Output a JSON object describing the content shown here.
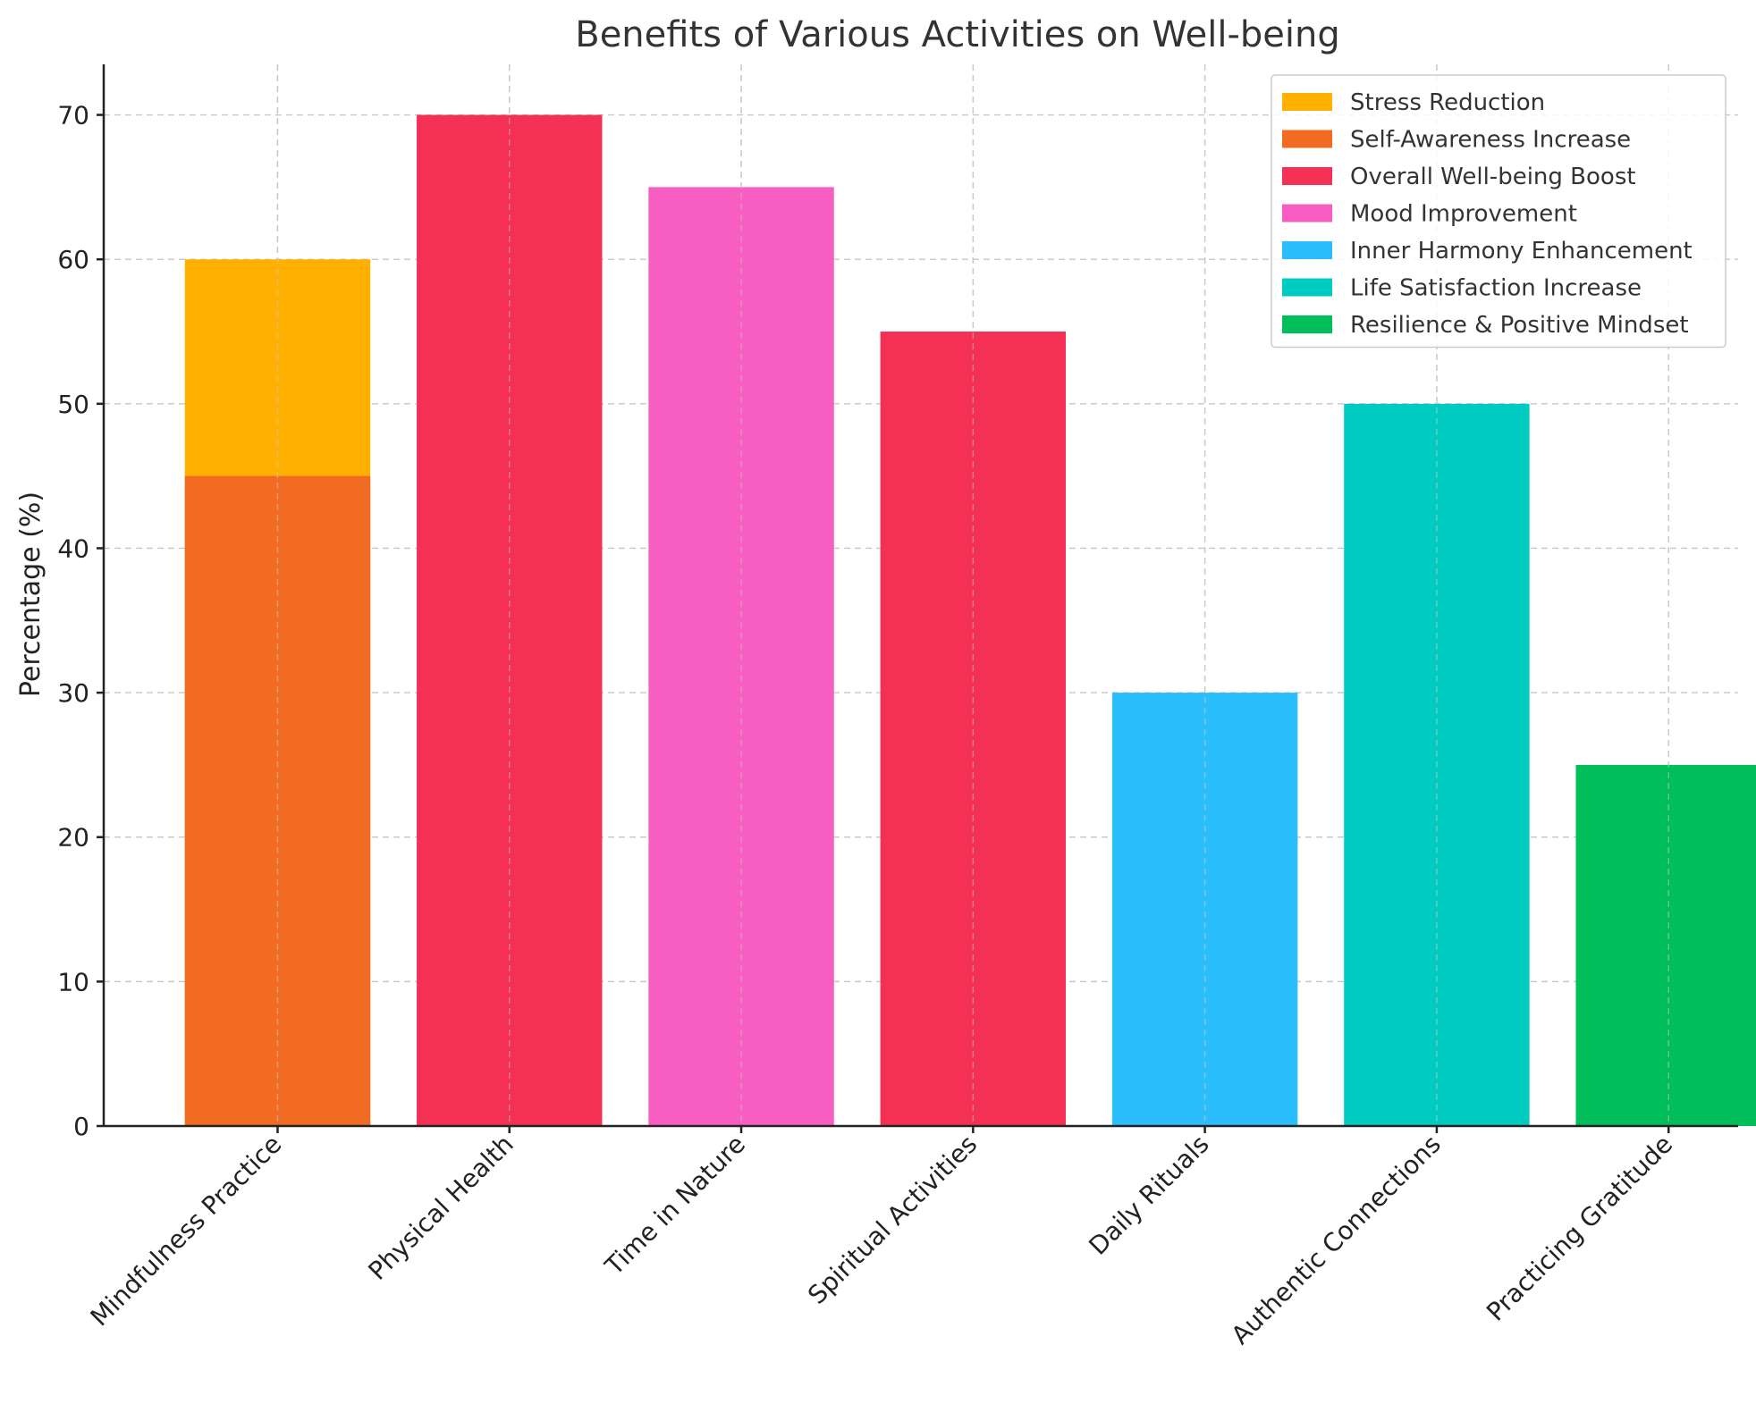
{
  "chart_data": {
    "type": "bar",
    "title": "Benefits of Various Activities on Well-being",
    "xlabel": "",
    "ylabel": "Percentage (%)",
    "ylim": [
      0,
      73.5
    ],
    "yticks": [
      0,
      10,
      20,
      30,
      40,
      50,
      60,
      70
    ],
    "grid": true,
    "legend_position": "top-right",
    "categories": [
      "Mindfulness Practice",
      "Physical Health",
      "Time in Nature",
      "Spiritual Activities",
      "Daily Rituals",
      "Authentic Connections",
      "Practicing Gratitude"
    ],
    "series": [
      {
        "name": "Stress Reduction",
        "color": "#FFB000",
        "values": [
          60,
          null,
          null,
          null,
          null,
          null,
          null
        ]
      },
      {
        "name": "Self-Awareness Increase",
        "color": "#F26B22",
        "values": [
          45,
          null,
          null,
          null,
          null,
          null,
          null
        ]
      },
      {
        "name": "Overall Well-being Boost",
        "color": "#F43155",
        "values": [
          null,
          70,
          null,
          55,
          null,
          null,
          null
        ]
      },
      {
        "name": "Mood Improvement",
        "color": "#F85DC2",
        "values": [
          null,
          null,
          65,
          null,
          null,
          null,
          null
        ]
      },
      {
        "name": "Inner Harmony Enhancement",
        "color": "#2BBEFC",
        "values": [
          null,
          null,
          null,
          null,
          30,
          null,
          null
        ]
      },
      {
        "name": "Life Satisfaction Increase",
        "color": "#00CBC0",
        "values": [
          null,
          null,
          null,
          null,
          null,
          50,
          null
        ]
      },
      {
        "name": "Resilience & Positive Mindset",
        "color": "#00BF5A",
        "values": [
          null,
          null,
          null,
          null,
          null,
          null,
          25
        ]
      }
    ]
  }
}
